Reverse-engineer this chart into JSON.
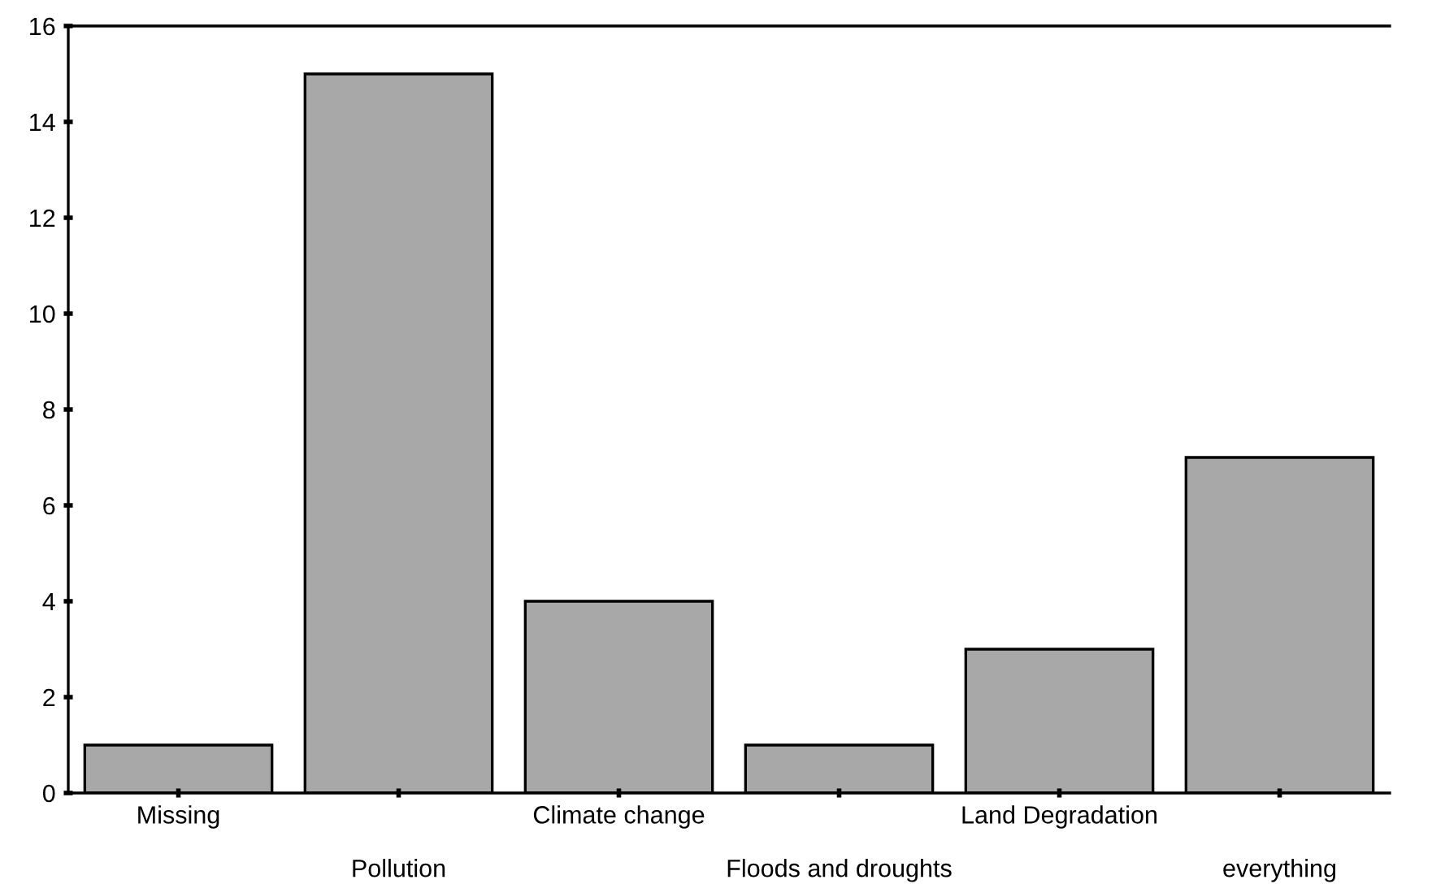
{
  "chart_data": {
    "type": "bar",
    "categories": [
      "Missing",
      "Pollution",
      "Climate change",
      "Floods and droughts",
      "Land Degradation",
      "everything"
    ],
    "values": [
      1,
      15,
      4,
      1,
      3,
      7
    ],
    "color": "#a8a8a8",
    "ylim": [
      0,
      16
    ],
    "yticks": [
      0,
      2,
      4,
      6,
      8,
      10,
      12,
      14,
      16
    ],
    "grid": false
  }
}
